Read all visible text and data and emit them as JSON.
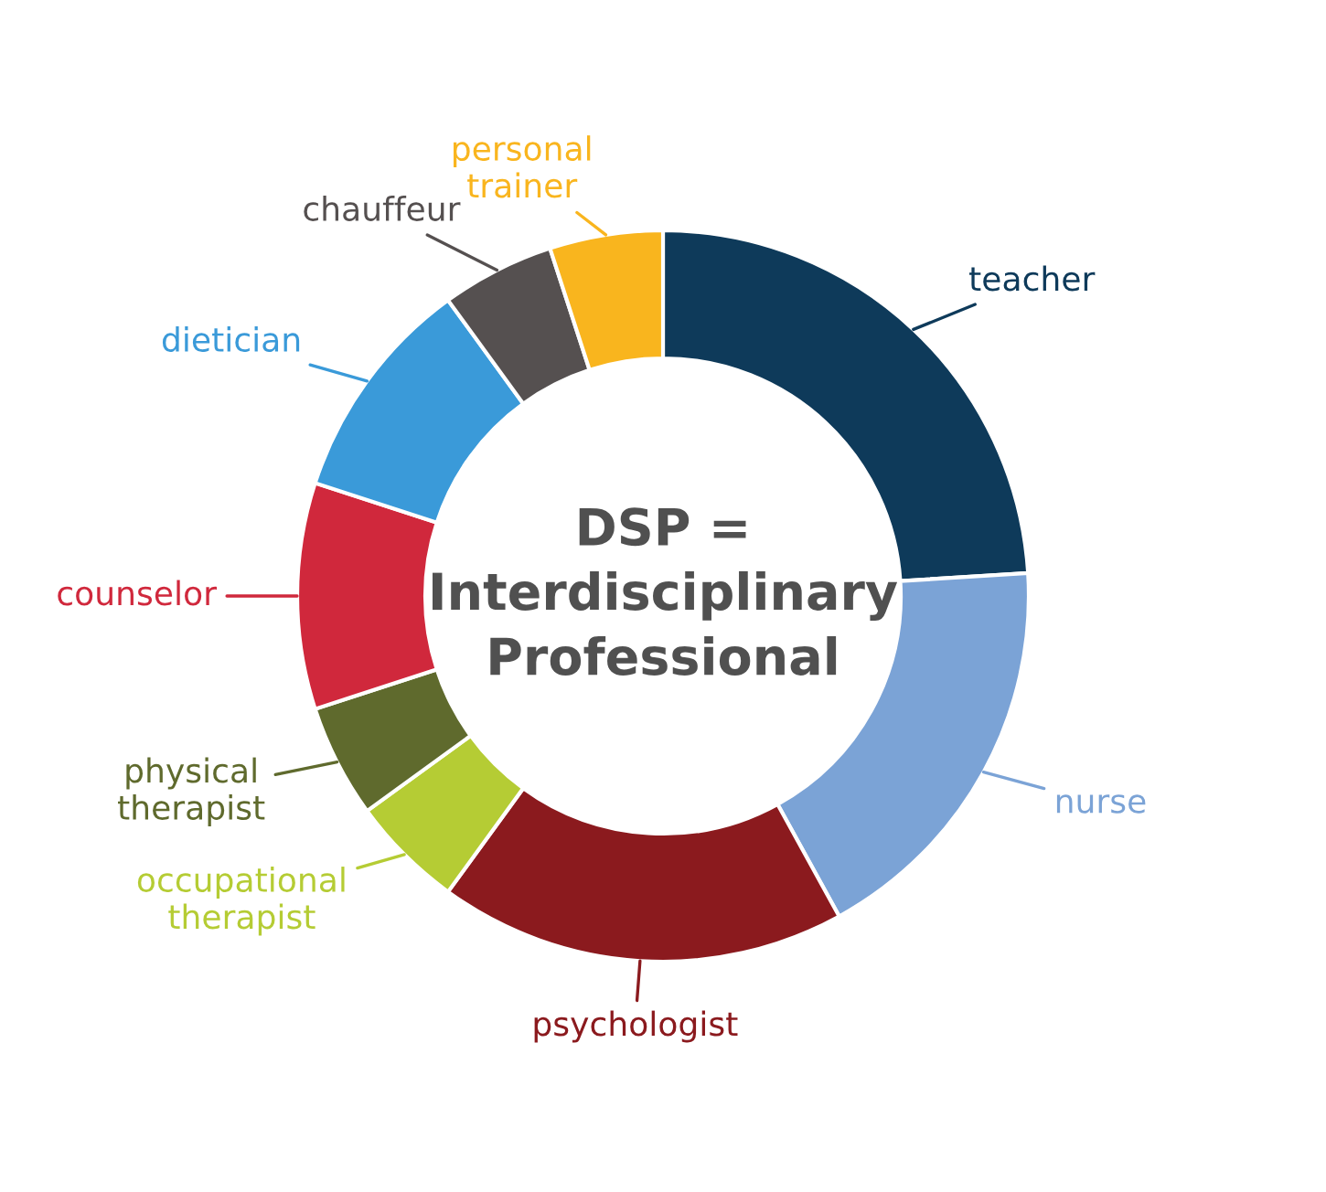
{
  "chart_data": {
    "type": "donut",
    "categories": [
      "teacher",
      "nurse",
      "psychologist",
      "occupational\ntherapist",
      "physical\ntherapist",
      "counselor",
      "dietician",
      "chauffeur",
      "personal\ntrainer"
    ],
    "values": [
      24,
      18,
      18,
      5,
      5,
      10,
      10,
      5,
      5
    ],
    "colors": [
      "#0e3a5a",
      "#7ba3d6",
      "#8b1a1e",
      "#b5cc34",
      "#5f6a2d",
      "#d0283c",
      "#3a9ad9",
      "#555050",
      "#f9b51e"
    ],
    "annotations": [
      "DSP =\nInterdisciplinary\nProfessional"
    ]
  }
}
